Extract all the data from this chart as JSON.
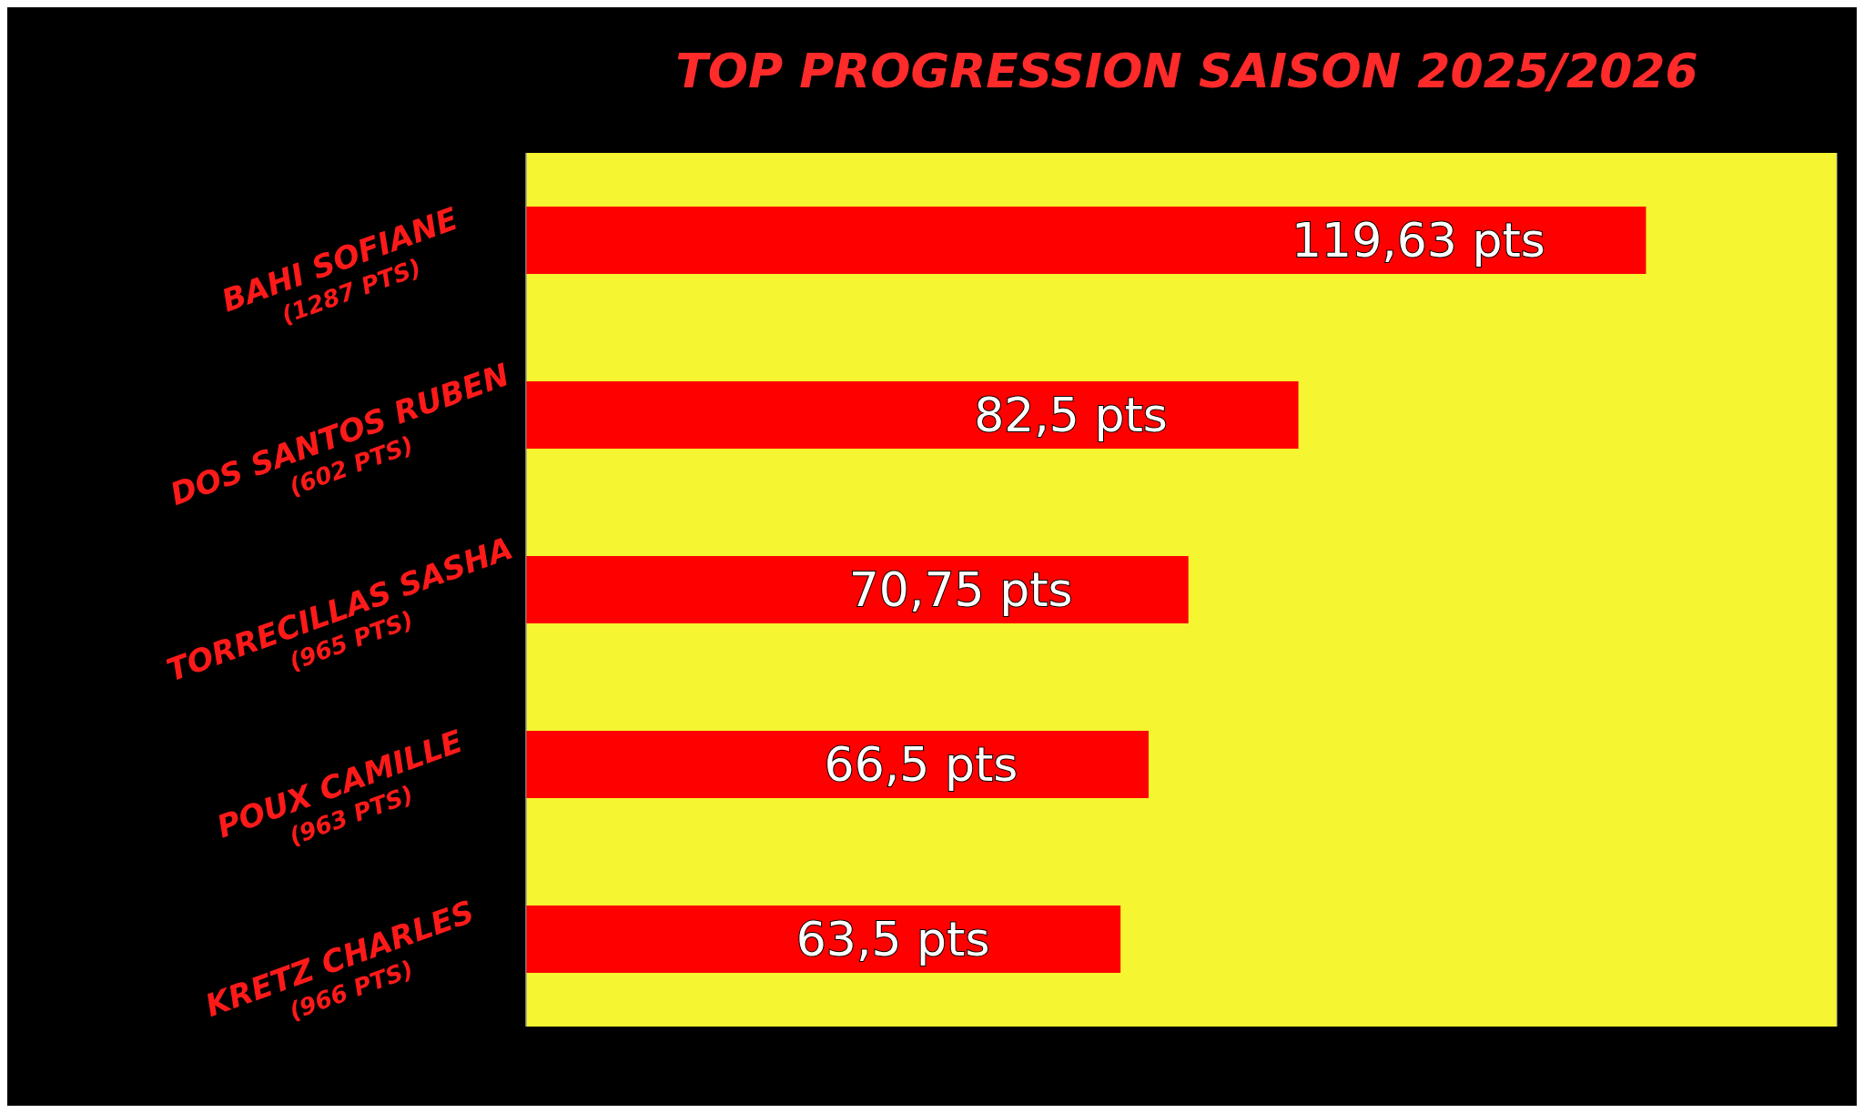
{
  "chart_data": {
    "type": "bar",
    "orientation": "horizontal",
    "title": "TOP PROGRESSION SAISON 2025/2026",
    "categories": [
      "BAHI SOFIANE\n(1287 PTS)",
      "DOS SANTOS RUBEN\n(602 PTS)",
      "TORRECILLAS SASHA\n(965 PTS)",
      "POUX CAMILLE\n(963 PTS)",
      "KRETZ CHARLES\n(966 PTS)"
    ],
    "values": [
      119.63,
      82.5,
      70.75,
      66.5,
      63.5
    ],
    "value_labels": [
      "119,63 pts",
      "82,5 pts",
      "70,75 pts",
      "66,5 pts",
      "63,5 pts"
    ],
    "color": "#ff0000",
    "xlim": [
      0,
      140
    ],
    "grid": "x",
    "tick_labels": "y"
  }
}
